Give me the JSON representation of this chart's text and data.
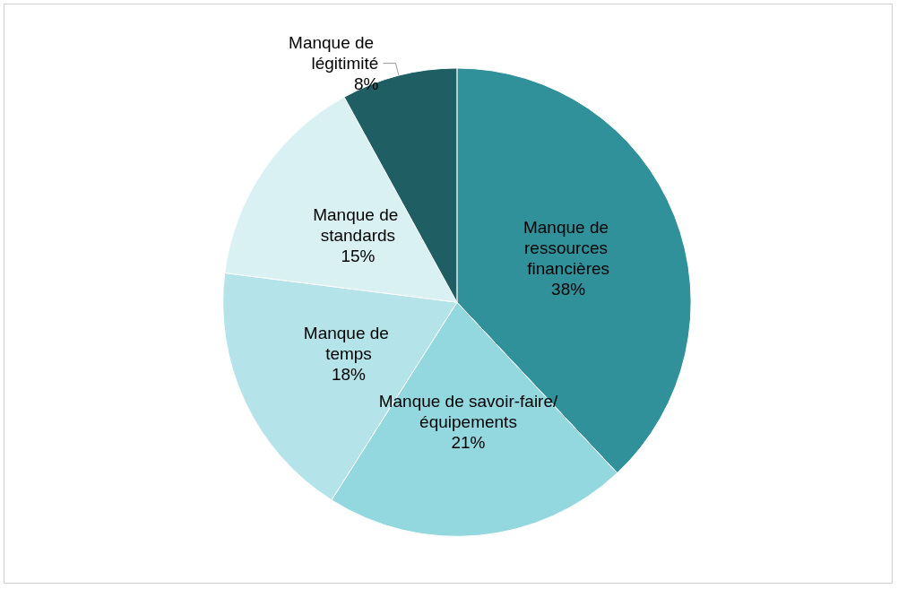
{
  "chart_data": {
    "type": "pie",
    "categories": [
      "Manque de ressources financières",
      "Manque de savoir-faire/équipements",
      "Manque de temps",
      "Manque de standards",
      "Manque de légitimité"
    ],
    "values": [
      38,
      21,
      18,
      15,
      8
    ],
    "colors": [
      "#31919a",
      "#93d7df",
      "#b4e4e9",
      "#daf1f4",
      "#1f5f64"
    ],
    "value_labels": [
      "38%",
      "21%",
      "18%",
      "15%",
      "8%"
    ],
    "legend": false
  }
}
